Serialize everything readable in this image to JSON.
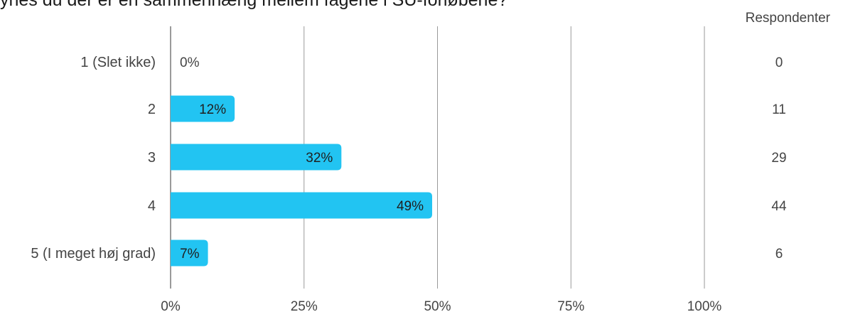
{
  "title": "ynes du der er en sammenhæng mellem fagene i SU-forløbene?",
  "colors": {
    "bar": "#22c4f2",
    "grid": "#9a9a9a",
    "text": "#444444",
    "axis": "#9a9a9a"
  },
  "chart_data": {
    "type": "bar",
    "orientation": "horizontal",
    "categories": [
      "1 (Slet ikke)",
      "2",
      "3",
      "4",
      "5 (I meget høj grad)"
    ],
    "values": [
      0,
      12,
      32,
      49,
      7
    ],
    "value_labels": [
      "0%",
      "12%",
      "32%",
      "49%",
      "7%"
    ],
    "respondents_header": "Respondenter",
    "respondents": [
      "0",
      "11",
      "29",
      "44",
      "6"
    ],
    "xlim": [
      0,
      100
    ],
    "x_ticks": [
      0,
      25,
      50,
      75,
      100
    ],
    "x_tick_labels": [
      "0%",
      "25%",
      "50%",
      "75%",
      "100%"
    ],
    "grid": true
  }
}
